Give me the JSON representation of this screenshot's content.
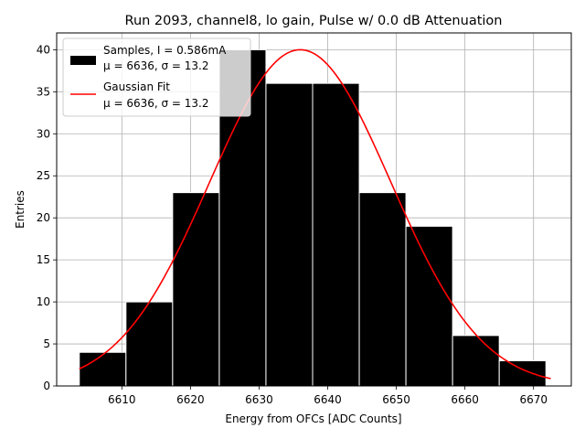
{
  "chart_data": {
    "type": "bar",
    "title": "Run 2093, channel8, lo gain, Pulse w/ 0.0 dB Attenuation",
    "xlabel": "Energy from OFCs [ADC Counts]",
    "ylabel": "Entries",
    "xlim": [
      6600.5,
      6675.5
    ],
    "ylim": [
      0,
      42
    ],
    "grid": true,
    "x_ticks": [
      6610,
      6620,
      6630,
      6640,
      6650,
      6660,
      6670
    ],
    "y_ticks": [
      0,
      5,
      10,
      15,
      20,
      25,
      30,
      35,
      40
    ],
    "histogram": {
      "name": "Samples",
      "bin_edges": [
        6603.8,
        6610.6,
        6617.4,
        6624.2,
        6631.0,
        6637.8,
        6644.6,
        6651.4,
        6658.2,
        6665.0,
        6671.8
      ],
      "counts": [
        4,
        10,
        23,
        40,
        36,
        36,
        23,
        19,
        6,
        3
      ],
      "fill_color": "#000000",
      "edge_color": "#ffffff"
    },
    "series": [
      {
        "name": "Gaussian Fit",
        "type": "line",
        "mu": 6636,
        "sigma": 13.2,
        "amplitude": 40,
        "x_range": [
          6603.8,
          6672.5
        ],
        "color": "#ff0000"
      }
    ],
    "legend": {
      "position": "top-left",
      "entries": [
        {
          "line1": "Samples, I = 0.586mA",
          "line2": "μ = 6636, σ = 13.2",
          "style": "patch",
          "color": "#000000"
        },
        {
          "line1": "Gaussian Fit",
          "line2": "μ = 6636, σ = 13.2",
          "style": "line",
          "color": "#ff0000"
        }
      ]
    }
  }
}
